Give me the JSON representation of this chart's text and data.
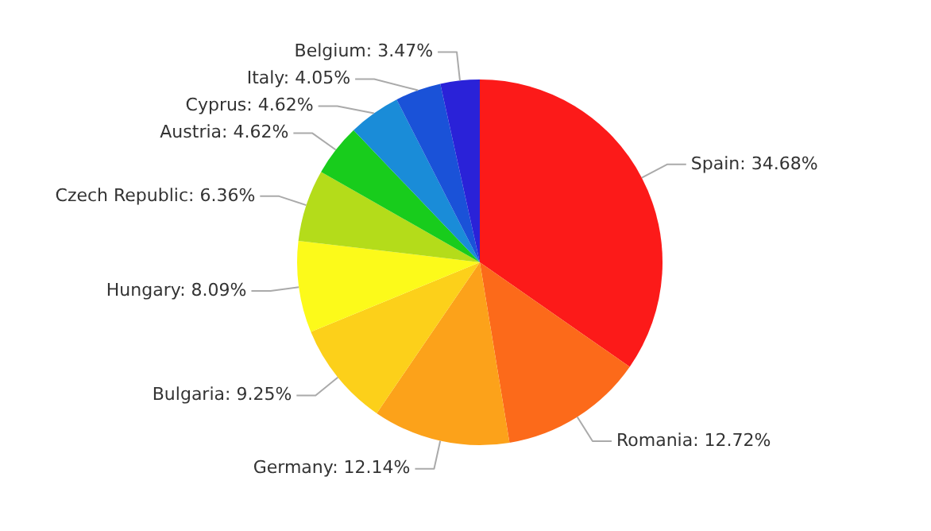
{
  "chart_data": {
    "type": "pie",
    "categories": [
      "Spain",
      "Romania",
      "Germany",
      "Bulgaria",
      "Hungary",
      "Czech Republic",
      "Austria",
      "Cyprus",
      "Italy",
      "Belgium"
    ],
    "values": [
      34.68,
      12.72,
      12.14,
      9.25,
      8.09,
      6.36,
      4.62,
      4.62,
      4.05,
      3.47
    ],
    "colors": [
      "#fc1a19",
      "#fc6a1a",
      "#fca21a",
      "#fcd01a",
      "#fcfa1a",
      "#b4dc1a",
      "#18cc1c",
      "#1a8cd8",
      "#1a52d8",
      "#2a22d8"
    ],
    "value_labels": [
      "34.68%",
      "12.72%",
      "12.14%",
      "9.25%",
      "8.09%",
      "6.36%",
      "4.62%",
      "4.62%",
      "4.05%",
      "3.47%"
    ],
    "legend": false
  }
}
